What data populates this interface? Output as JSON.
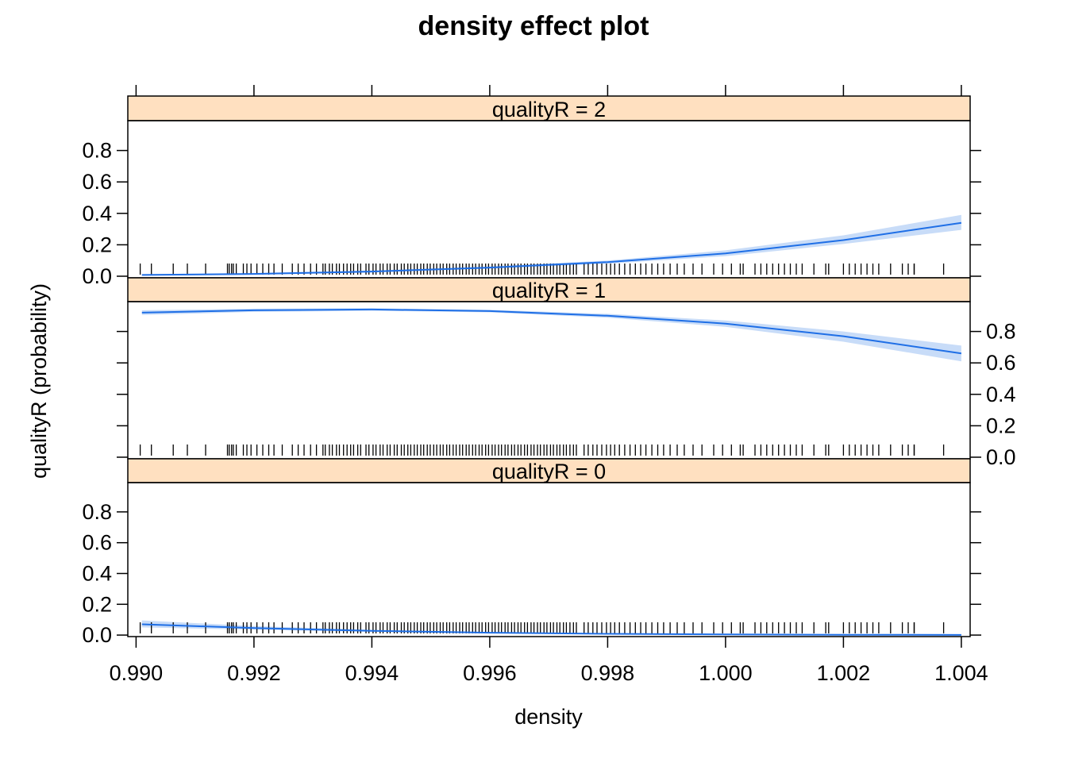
{
  "chart_data": {
    "type": "line",
    "title": "density effect plot",
    "xlabel": "density",
    "ylabel": "qualityR (probability)",
    "xlim": [
      0.98986,
      1.00415
    ],
    "ylim": [
      -0.01,
      0.99
    ],
    "x_ticks": [
      0.99,
      0.992,
      0.994,
      0.996,
      0.998,
      1.0,
      1.002,
      1.004
    ],
    "x_tick_labels": [
      "0.990",
      "0.992",
      "0.994",
      "0.996",
      "0.998",
      "1.000",
      "1.002",
      "1.004"
    ],
    "y_ticks": [
      0.0,
      0.2,
      0.4,
      0.6,
      0.8
    ],
    "y_tick_labels": [
      "0.0",
      "0.2",
      "0.4",
      "0.6",
      "0.8"
    ],
    "grid": false,
    "colors": {
      "strip_fill": "#ffe0c0",
      "line": "#1f6fe6",
      "band": "#c8dcf8",
      "rug": "#000000"
    },
    "panels": [
      {
        "strip_label": "qualityR = 2",
        "x": [
          0.9901,
          0.992,
          0.994,
          0.996,
          0.998,
          1.0,
          1.002,
          1.004
        ],
        "fit": [
          0.008,
          0.015,
          0.03,
          0.055,
          0.09,
          0.145,
          0.23,
          0.34
        ],
        "lower": [
          0.004,
          0.01,
          0.024,
          0.048,
          0.08,
          0.128,
          0.205,
          0.295
        ],
        "upper": [
          0.013,
          0.021,
          0.037,
          0.062,
          0.1,
          0.165,
          0.26,
          0.39
        ]
      },
      {
        "strip_label": "qualityR = 1",
        "x": [
          0.9901,
          0.992,
          0.994,
          0.996,
          0.998,
          1.0,
          1.002,
          1.004
        ],
        "fit": [
          0.92,
          0.935,
          0.94,
          0.93,
          0.9,
          0.85,
          0.77,
          0.66
        ],
        "lower": [
          0.905,
          0.925,
          0.932,
          0.922,
          0.888,
          0.83,
          0.735,
          0.61
        ],
        "upper": [
          0.935,
          0.945,
          0.948,
          0.938,
          0.912,
          0.87,
          0.8,
          0.71
        ]
      },
      {
        "strip_label": "qualityR = 0",
        "x": [
          0.9901,
          0.992,
          0.994,
          0.996,
          0.998,
          1.0,
          1.002,
          1.004
        ],
        "fit": [
          0.07,
          0.045,
          0.027,
          0.015,
          0.008,
          0.004,
          0.002,
          0.001
        ],
        "lower": [
          0.05,
          0.035,
          0.021,
          0.011,
          0.005,
          0.002,
          0.001,
          0.0
        ],
        "upper": [
          0.095,
          0.058,
          0.034,
          0.02,
          0.012,
          0.007,
          0.004,
          0.003
        ]
      }
    ],
    "rug": [
      0.99007,
      0.99162,
      0.9917,
      0.99182,
      0.99195,
      0.99215,
      0.99234,
      0.99265,
      0.99285,
      0.99306,
      0.99317,
      0.99328,
      0.9934,
      0.99352,
      0.99364,
      0.99376,
      0.9939,
      0.99402,
      0.99414,
      0.99426,
      0.99438,
      0.9945,
      0.99461,
      0.99472,
      0.99483,
      0.99494,
      0.99505,
      0.99516,
      0.99527,
      0.99538,
      0.99549,
      0.9956,
      0.99571,
      0.99582,
      0.99593,
      0.99604,
      0.99615,
      0.99626,
      0.99637,
      0.99648,
      0.99659,
      0.9967,
      0.99681,
      0.99692,
      0.99703,
      0.99714,
      0.99725,
      0.99736,
      0.99747,
      0.9976,
      0.99775,
      0.9979,
      0.99805,
      0.9982,
      0.99838,
      0.99856,
      0.99875,
      0.99895,
      0.99918,
      0.99945,
      0.9998,
      1.0001,
      1.0003,
      1.0006,
      1.0008,
      1.001,
      1.0012,
      1.0015,
      1.00175,
      1.002,
      1.0022,
      1.0024,
      1.0026,
      1.003,
      1.0032,
      1.0037,
      0.99026,
      0.99063,
      0.99087,
      0.99118,
      0.99155,
      0.99158,
      0.99165,
      0.99188,
      0.99205,
      0.99225,
      0.99248,
      0.99275,
      0.99296,
      0.99321,
      0.99333,
      0.99345,
      0.99358,
      0.99369,
      0.99381,
      0.99395,
      0.99407,
      0.99419,
      0.99431,
      0.99443,
      0.99455,
      0.99466,
      0.99477,
      0.99488,
      0.99499,
      0.9951,
      0.99521,
      0.99532,
      0.99543,
      0.99554,
      0.99565,
      0.99576,
      0.99587,
      0.99598,
      0.99609,
      0.9962,
      0.99631,
      0.99642,
      0.99653,
      0.99664,
      0.99675,
      0.99686,
      0.99697,
      0.99708,
      0.99719,
      0.9973,
      0.99742,
      0.99767,
      0.99782,
      0.99798,
      0.99812,
      0.99829,
      0.99847,
      0.99865,
      0.99885,
      0.99906,
      0.9993,
      0.9996,
      0.99995,
      1.00025,
      1.0005,
      1.0007,
      1.0009,
      1.0011,
      1.0013,
      1.0017,
      1.0021,
      1.0023,
      1.0025,
      1.0028,
      1.0031,
      1.0032
    ]
  }
}
